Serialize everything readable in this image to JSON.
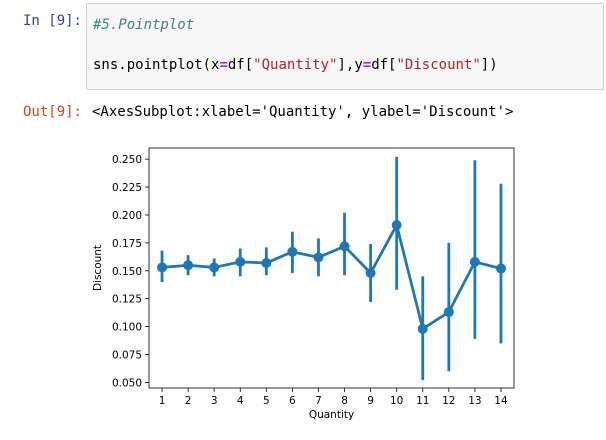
{
  "input": {
    "prompt": "In [9]:",
    "comment": "#5.Pointplot",
    "code": {
      "p1": "sns.pointplot(x",
      "eq1": "=",
      "p2": "df[",
      "s1": "\"Quantity\"",
      "p3": "],y",
      "eq2": "=",
      "p4": "df[",
      "s2": "\"Discount\"",
      "p5": "])"
    }
  },
  "output": {
    "prompt": "Out[9]:",
    "text": "<AxesSubplot:xlabel='Quantity', ylabel='Discount'>"
  },
  "colors": {
    "series": "#1f77b4",
    "in_prompt": "#303f9f",
    "out_prompt": "#d84315"
  },
  "chart_data": {
    "type": "line",
    "variant": "pointplot with confidence-interval error bars",
    "title": "",
    "xlabel": "Quantity",
    "ylabel": "Discount",
    "categories": [
      "1",
      "2",
      "3",
      "4",
      "5",
      "6",
      "7",
      "8",
      "9",
      "10",
      "11",
      "12",
      "13",
      "14"
    ],
    "ylim": [
      0.045,
      0.26
    ],
    "yticks": [
      "0.050",
      "0.075",
      "0.100",
      "0.125",
      "0.150",
      "0.175",
      "0.200",
      "0.225",
      "0.250"
    ],
    "grid": false,
    "legend": "none",
    "series": [
      {
        "values": [
          0.153,
          0.155,
          0.153,
          0.158,
          0.157,
          0.167,
          0.162,
          0.172,
          0.148,
          0.191,
          0.098,
          0.113,
          0.158,
          0.152
        ],
        "ci_low": [
          0.14,
          0.146,
          0.145,
          0.145,
          0.146,
          0.148,
          0.145,
          0.146,
          0.122,
          0.133,
          0.052,
          0.06,
          0.089,
          0.085
        ],
        "ci_high": [
          0.168,
          0.164,
          0.161,
          0.17,
          0.171,
          0.185,
          0.179,
          0.202,
          0.174,
          0.252,
          0.145,
          0.175,
          0.249,
          0.228
        ]
      }
    ]
  }
}
